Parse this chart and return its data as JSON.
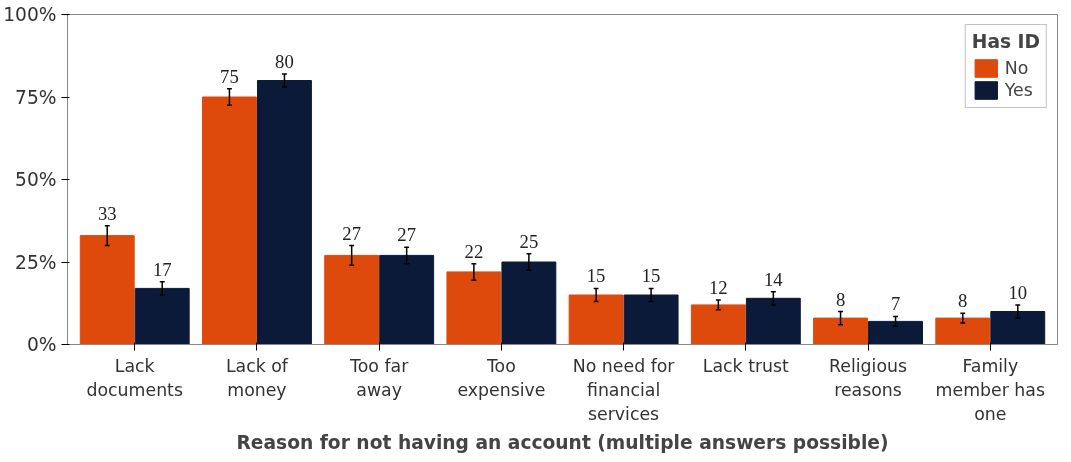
{
  "chart_data": {
    "type": "bar",
    "xlabel": "Reason for not having an account (multiple answers possible)",
    "legend_title": "Has ID",
    "categories": [
      "Lack documents",
      "Lack of money",
      "Too far away",
      "Too expensive",
      "No need for financial services",
      "Lack trust",
      "Religious reasons",
      "Family member has one"
    ],
    "series": [
      {
        "name": "No",
        "color": "#de4a0c",
        "values": [
          33,
          75,
          27,
          22,
          15,
          12,
          8,
          8
        ],
        "errors": [
          3,
          2.5,
          3,
          2.5,
          2,
          1.5,
          2,
          1.5
        ]
      },
      {
        "name": "Yes",
        "color": "#0c1a3a",
        "values": [
          17,
          80,
          27,
          25,
          15,
          14,
          7,
          10
        ],
        "errors": [
          2,
          2,
          2.5,
          2.5,
          2,
          2,
          1.5,
          2
        ]
      }
    ],
    "ylim": [
      0,
      100
    ],
    "yticks": [
      {
        "value": 0,
        "label": "0%"
      },
      {
        "value": 25,
        "label": "25%"
      },
      {
        "value": 50,
        "label": "50%"
      },
      {
        "value": 75,
        "label": "75%"
      },
      {
        "value": 100,
        "label": "100%"
      }
    ],
    "data_labels": true,
    "grid": false,
    "legend": "top right"
  }
}
